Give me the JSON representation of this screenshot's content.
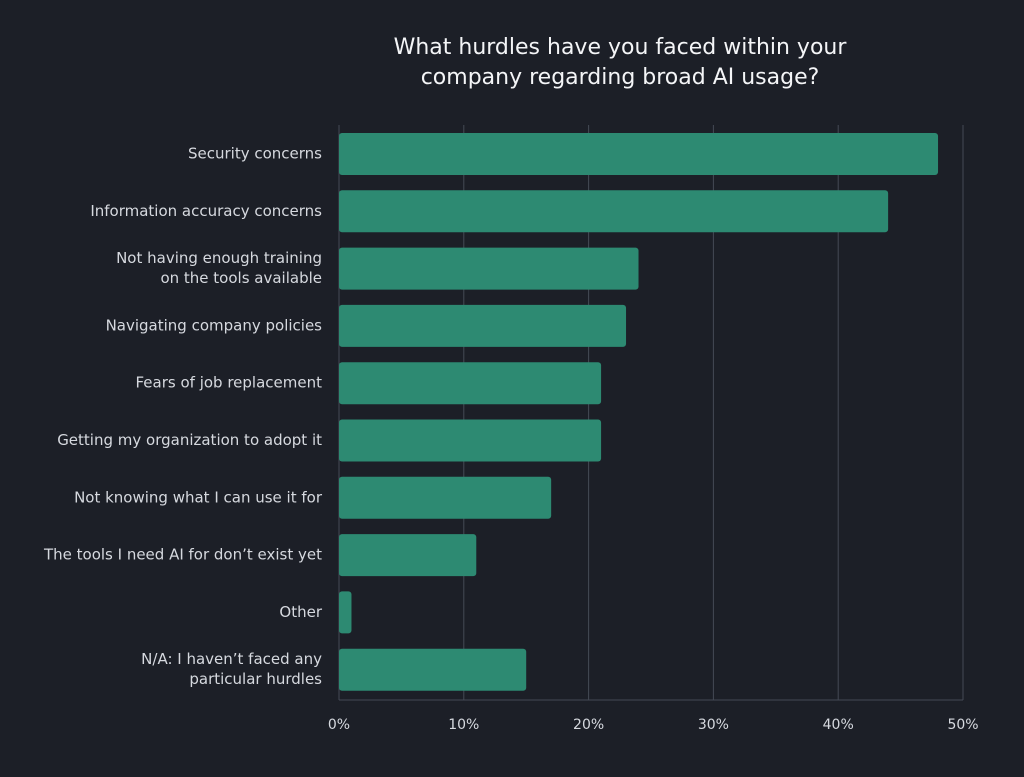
{
  "colors": {
    "background": "#1c1f27",
    "bar": "#2d8a72",
    "gridline": "#454a55",
    "text": "#d6d9df"
  },
  "chart_data": {
    "type": "bar",
    "orientation": "horizontal",
    "title_lines": [
      "What hurdles have you faced within your",
      "company regarding broad AI usage?"
    ],
    "categories": [
      [
        "Security concerns"
      ],
      [
        "Information accuracy concerns"
      ],
      [
        "Not having enough training",
        "on the tools available"
      ],
      [
        "Navigating company policies"
      ],
      [
        "Fears of job replacement"
      ],
      [
        "Getting my organization to adopt it"
      ],
      [
        "Not knowing what I can use it for"
      ],
      [
        "The tools I need AI for don’t exist yet"
      ],
      [
        "Other"
      ],
      [
        "N/A: I haven’t faced any",
        "particular hurdles"
      ]
    ],
    "values": [
      48,
      44,
      24,
      23,
      21,
      21,
      17,
      11,
      1,
      15
    ],
    "xlim": [
      0,
      50
    ],
    "xticks": [
      0,
      10,
      20,
      30,
      40,
      50
    ],
    "xtick_labels": [
      "0%",
      "10%",
      "20%",
      "30%",
      "40%",
      "50%"
    ],
    "grid": true,
    "unit": "%"
  }
}
